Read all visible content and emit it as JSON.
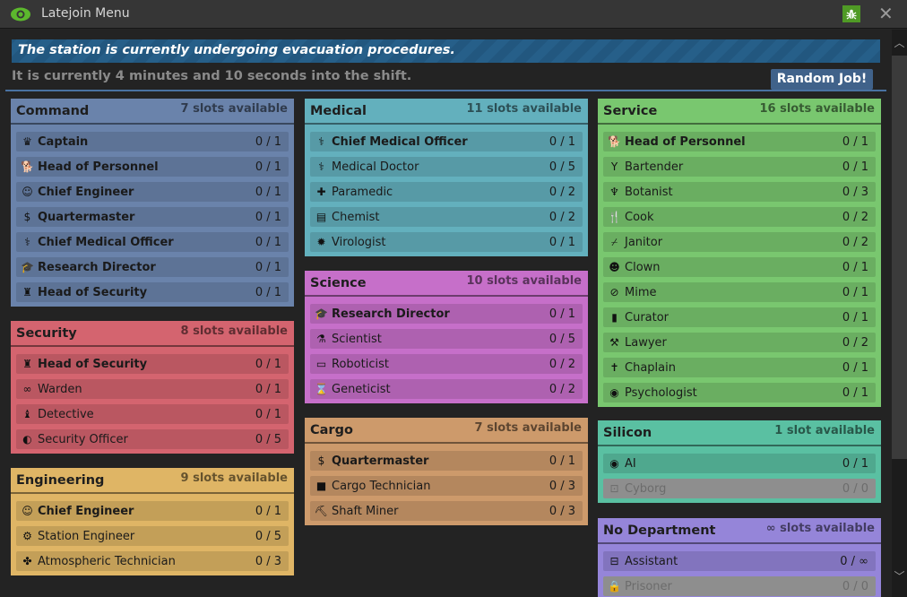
{
  "window": {
    "title": "Latejoin Menu",
    "icons": {
      "logo": "eye-icon",
      "debug": "bug-icon",
      "close": "close-icon"
    }
  },
  "notice": "The station is currently undergoing evacuation procedures.",
  "shift_time": "It is currently 4 minutes and 10 seconds into the shift.",
  "random_job_label": "Random Job!",
  "colors": {
    "command": "#6a83ab",
    "security": "#d4646f",
    "engineering": "#dfb565",
    "medical": "#63b0bd",
    "science": "#c66fc9",
    "cargo": "#cd9a6b",
    "service": "#79c76f",
    "silicon": "#5ac0a2",
    "nodept": "#9585d9",
    "accent": "#40628a"
  },
  "departments": {
    "command": {
      "name": "Command",
      "slots": "7 slots available",
      "jobs": [
        {
          "name": "Captain",
          "count": "0 / 1",
          "icon": "crown-icon"
        },
        {
          "name": "Head of Personnel",
          "count": "0 / 1",
          "icon": "dog-icon"
        },
        {
          "name": "Chief Engineer",
          "count": "0 / 1",
          "icon": "user-astronaut-icon"
        },
        {
          "name": "Quartermaster",
          "count": "0 / 1",
          "icon": "money-bag-icon"
        },
        {
          "name": "Chief Medical Officer",
          "count": "0 / 1",
          "icon": "user-doctor-icon"
        },
        {
          "name": "Research Director",
          "count": "0 / 1",
          "icon": "user-graduate-icon"
        },
        {
          "name": "Head of Security",
          "count": "0 / 1",
          "icon": "user-shield-icon"
        }
      ]
    },
    "security": {
      "name": "Security",
      "slots": "8 slots available",
      "jobs": [
        {
          "name": "Head of Security",
          "count": "0 / 1",
          "icon": "user-shield-icon"
        },
        {
          "name": "Warden",
          "count": "0 / 1",
          "icon": "handcuffs-icon"
        },
        {
          "name": "Detective",
          "count": "0 / 1",
          "icon": "user-secret-icon"
        },
        {
          "name": "Security Officer",
          "count": "0 / 5",
          "icon": "shield-icon"
        }
      ]
    },
    "engineering": {
      "name": "Engineering",
      "slots": "9 slots available",
      "jobs": [
        {
          "name": "Chief Engineer",
          "count": "0 / 1",
          "icon": "user-astronaut-icon"
        },
        {
          "name": "Station Engineer",
          "count": "0 / 5",
          "icon": "gears-icon"
        },
        {
          "name": "Atmospheric Technician",
          "count": "0 / 3",
          "icon": "fan-icon"
        }
      ]
    },
    "medical": {
      "name": "Medical",
      "slots": "11 slots available",
      "jobs": [
        {
          "name": "Chief Medical Officer",
          "count": "0 / 1",
          "icon": "user-doctor-icon"
        },
        {
          "name": "Medical Doctor",
          "count": "0 / 5",
          "icon": "staff-snake-icon"
        },
        {
          "name": "Paramedic",
          "count": "0 / 2",
          "icon": "truck-medical-icon"
        },
        {
          "name": "Chemist",
          "count": "0 / 2",
          "icon": "prescription-bottle-icon"
        },
        {
          "name": "Virologist",
          "count": "0 / 1",
          "icon": "virus-icon"
        }
      ]
    },
    "science": {
      "name": "Science",
      "slots": "10 slots available",
      "jobs": [
        {
          "name": "Research Director",
          "count": "0 / 1",
          "icon": "user-graduate-icon"
        },
        {
          "name": "Scientist",
          "count": "0 / 5",
          "icon": "flask-icon"
        },
        {
          "name": "Roboticist",
          "count": "0 / 2",
          "icon": "battery-icon"
        },
        {
          "name": "Geneticist",
          "count": "0 / 2",
          "icon": "hourglass-icon"
        }
      ]
    },
    "cargo": {
      "name": "Cargo",
      "slots": "7 slots available",
      "jobs": [
        {
          "name": "Quartermaster",
          "count": "0 / 1",
          "icon": "money-bag-icon"
        },
        {
          "name": "Cargo Technician",
          "count": "0 / 3",
          "icon": "box-icon"
        },
        {
          "name": "Shaft Miner",
          "count": "0 / 3",
          "icon": "person-digging-icon"
        }
      ]
    },
    "service": {
      "name": "Service",
      "slots": "16 slots available",
      "jobs": [
        {
          "name": "Head of Personnel",
          "count": "0 / 1",
          "icon": "dog-icon"
        },
        {
          "name": "Bartender",
          "count": "0 / 1",
          "icon": "cocktail-icon"
        },
        {
          "name": "Botanist",
          "count": "0 / 3",
          "icon": "seedling-icon"
        },
        {
          "name": "Cook",
          "count": "0 / 2",
          "icon": "utensils-icon"
        },
        {
          "name": "Janitor",
          "count": "0 / 2",
          "icon": "broom-icon"
        },
        {
          "name": "Clown",
          "count": "0 / 1",
          "icon": "grin-icon"
        },
        {
          "name": "Mime",
          "count": "0 / 1",
          "icon": "comment-slash-icon"
        },
        {
          "name": "Curator",
          "count": "0 / 1",
          "icon": "book-icon"
        },
        {
          "name": "Lawyer",
          "count": "0 / 2",
          "icon": "gavel-icon"
        },
        {
          "name": "Chaplain",
          "count": "0 / 1",
          "icon": "cross-icon"
        },
        {
          "name": "Psychologist",
          "count": "0 / 1",
          "icon": "brain-icon"
        }
      ]
    },
    "silicon": {
      "name": "Silicon",
      "slots": "1 slot available",
      "jobs": [
        {
          "name": "AI",
          "count": "0 / 1",
          "icon": "eye-icon"
        },
        {
          "name": "Cyborg",
          "count": "0 / 0",
          "icon": "robot-icon",
          "disabled": true
        }
      ]
    },
    "nodept": {
      "name": "No Department",
      "slots": "∞ slots available",
      "jobs": [
        {
          "name": "Assistant",
          "count": "0 / ∞",
          "icon": "toolbox-icon"
        },
        {
          "name": "Prisoner",
          "count": "0 / 0",
          "icon": "lock-icon",
          "disabled": true
        }
      ]
    }
  }
}
